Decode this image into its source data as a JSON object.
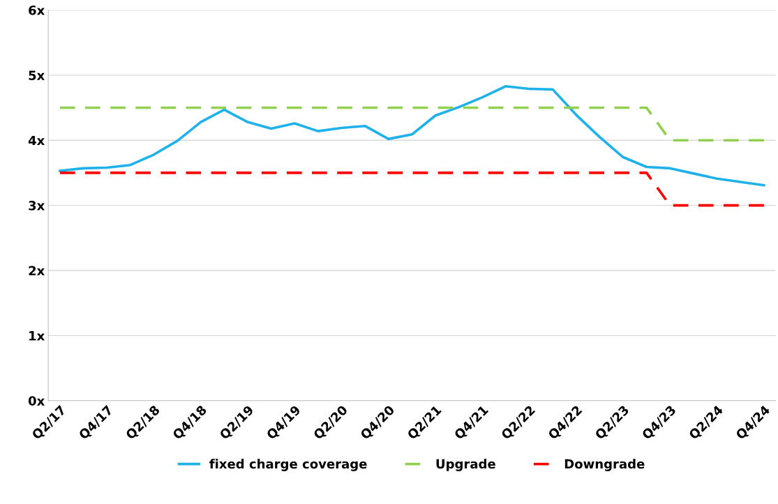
{
  "chart_data": {
    "type": "line",
    "categories": [
      "Q2/17",
      null,
      "Q4/17",
      null,
      "Q2/18",
      null,
      "Q4/18",
      null,
      "Q2/19",
      null,
      "Q4/19",
      null,
      "Q2/20",
      null,
      "Q4/20",
      null,
      "Q2/21",
      null,
      "Q4/21",
      null,
      "Q2/22",
      null,
      "Q4/22",
      null,
      "Q2/23",
      null,
      "Q4/23",
      null,
      "Q2/24",
      null,
      "Q4/24"
    ],
    "series": [
      {
        "name": "fixed charge coverage",
        "color": "#1fb1ea",
        "line_style": "solid",
        "values": [
          3.53,
          3.57,
          3.58,
          3.62,
          3.78,
          3.99,
          4.28,
          4.47,
          4.28,
          4.18,
          4.26,
          4.14,
          4.19,
          4.22,
          4.02,
          4.09,
          4.38,
          4.51,
          4.66,
          4.83,
          4.79,
          4.78,
          4.39,
          4.05,
          3.74,
          3.59,
          3.57,
          3.49,
          3.41,
          3.36,
          3.31
        ]
      },
      {
        "name": "Upgrade",
        "color": "#92d050",
        "line_style": "dashed",
        "values": [
          4.5,
          4.5,
          4.5,
          4.5,
          4.5,
          4.5,
          4.5,
          4.5,
          4.5,
          4.5,
          4.5,
          4.5,
          4.5,
          4.5,
          4.5,
          4.5,
          4.5,
          4.5,
          4.5,
          4.5,
          4.5,
          4.5,
          4.5,
          4.5,
          4.5,
          4.5,
          4.0,
          4.0,
          4.0,
          4.0,
          4.0
        ]
      },
      {
        "name": "Downgrade",
        "color": "#ff0000",
        "line_style": "dashed",
        "values": [
          3.5,
          3.5,
          3.5,
          3.5,
          3.5,
          3.5,
          3.5,
          3.5,
          3.5,
          3.5,
          3.5,
          3.5,
          3.5,
          3.5,
          3.5,
          3.5,
          3.5,
          3.5,
          3.5,
          3.5,
          3.5,
          3.5,
          3.5,
          3.5,
          3.5,
          3.5,
          3.0,
          3.0,
          3.0,
          3.0,
          3.0
        ]
      }
    ],
    "ylim": [
      0,
      6
    ],
    "yticks": [
      {
        "value": 0,
        "label": "0x"
      },
      {
        "value": 1,
        "label": "1x"
      },
      {
        "value": 2,
        "label": "2x"
      },
      {
        "value": 3,
        "label": "3x"
      },
      {
        "value": 4,
        "label": "4x"
      },
      {
        "value": 5,
        "label": "5x"
      },
      {
        "value": 6,
        "label": "6x"
      }
    ],
    "grid": "y",
    "legend": "bottom",
    "marker": "none"
  }
}
